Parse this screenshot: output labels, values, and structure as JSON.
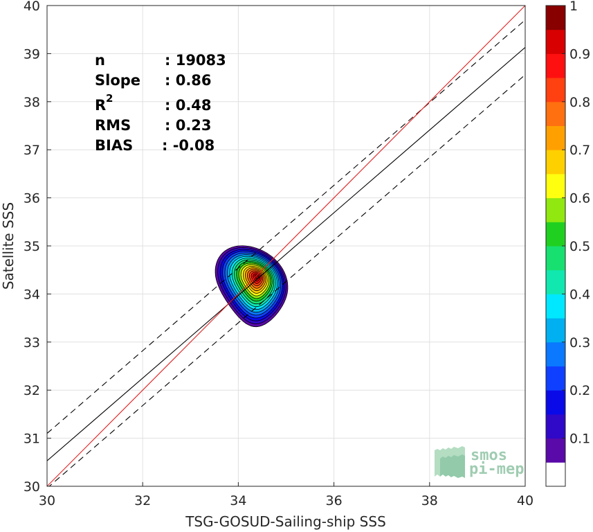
{
  "chart_data": {
    "type": "scatter",
    "subtype": "density-contour",
    "xlabel": "TSG-GOSUD-Sailing-ship SSS",
    "ylabel": "Satellite SSS",
    "xlim": [
      30,
      40
    ],
    "ylim": [
      30,
      40
    ],
    "xticks": [
      "30",
      "32",
      "34",
      "36",
      "38",
      "40"
    ],
    "yticks": [
      "30",
      "31",
      "32",
      "33",
      "34",
      "35",
      "36",
      "37",
      "38",
      "39",
      "40"
    ],
    "grid": true,
    "stats": [
      {
        "name": "n",
        "value": ": 19083"
      },
      {
        "name": "Slope",
        "value": ": 0.86"
      },
      {
        "name": "R",
        "superscript": "2",
        "value": ": 0.48"
      },
      {
        "name": "RMS",
        "value": ": 0.23"
      },
      {
        "name": "BIAS",
        "value": ": -0.08"
      }
    ],
    "lines": {
      "identity": {
        "x": [
          30,
          40
        ],
        "y": [
          30,
          40
        ],
        "color": "#e02020"
      },
      "regression": {
        "x": [
          30,
          40
        ],
        "y": [
          30.53,
          39.13
        ],
        "color": "#000000"
      },
      "upper_bound": {
        "x": [
          30,
          40
        ],
        "y": [
          31.1,
          39.7
        ],
        "color": "#000000"
      },
      "lower_bound": {
        "x": [
          30,
          40
        ],
        "y": [
          29.96,
          38.56
        ],
        "color": "#000000"
      }
    },
    "density_center": {
      "x": 34.45,
      "y": 34.42
    },
    "colorbar": {
      "ticks": [
        "0.1",
        "0.2",
        "0.3",
        "0.4",
        "0.5",
        "0.6",
        "0.7",
        "0.8",
        "0.9",
        "1"
      ],
      "range": [
        0,
        1
      ],
      "levels": [
        {
          "from": 0.0,
          "to": 0.05,
          "color": "#ffffff"
        },
        {
          "from": 0.05,
          "to": 0.1,
          "color": "#5a0aa8"
        },
        {
          "from": 0.1,
          "to": 0.15,
          "color": "#3008c8"
        },
        {
          "from": 0.15,
          "to": 0.2,
          "color": "#0a0ae8"
        },
        {
          "from": 0.2,
          "to": 0.25,
          "color": "#1040ff"
        },
        {
          "from": 0.25,
          "to": 0.3,
          "color": "#0a78ff"
        },
        {
          "from": 0.3,
          "to": 0.35,
          "color": "#00b0f0"
        },
        {
          "from": 0.35,
          "to": 0.4,
          "color": "#00e8ff"
        },
        {
          "from": 0.4,
          "to": 0.45,
          "color": "#10e8b0"
        },
        {
          "from": 0.45,
          "to": 0.5,
          "color": "#18e070"
        },
        {
          "from": 0.5,
          "to": 0.55,
          "color": "#20d020"
        },
        {
          "from": 0.55,
          "to": 0.6,
          "color": "#90e810"
        },
        {
          "from": 0.6,
          "to": 0.65,
          "color": "#ffff10"
        },
        {
          "from": 0.65,
          "to": 0.7,
          "color": "#ffd000"
        },
        {
          "from": 0.7,
          "to": 0.75,
          "color": "#ffa000"
        },
        {
          "from": 0.75,
          "to": 0.8,
          "color": "#ff7010"
        },
        {
          "from": 0.8,
          "to": 0.85,
          "color": "#ff4010"
        },
        {
          "from": 0.85,
          "to": 0.9,
          "color": "#ff1010"
        },
        {
          "from": 0.9,
          "to": 0.95,
          "color": "#d80000"
        },
        {
          "from": 0.95,
          "to": 1.0,
          "color": "#880000"
        }
      ]
    },
    "watermark": {
      "line1": "smos",
      "line2": "pi-mep"
    }
  }
}
